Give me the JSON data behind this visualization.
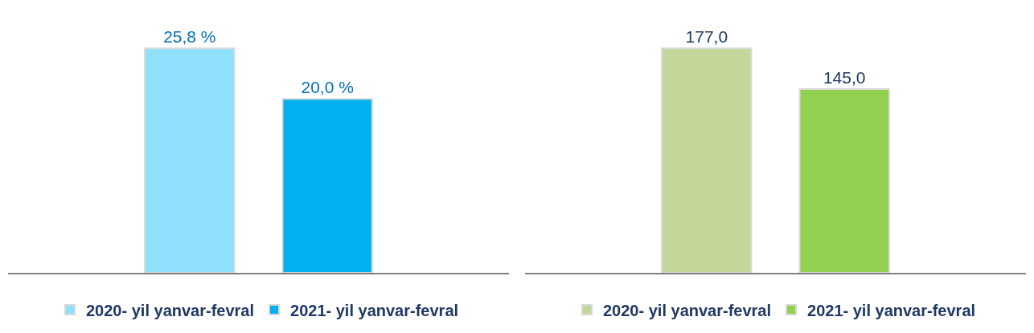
{
  "chart_data": [
    {
      "type": "bar",
      "categories": [
        null
      ],
      "data_labels": false,
      "legend": "bottom",
      "grid": false,
      "series": [
        {
          "name": "2020- yil yanvar-fevral",
          "color": "#8ee0fc",
          "values": [
            25.8
          ],
          "value_labels": [
            "25,8 %"
          ]
        },
        {
          "name": "2021- yil yanvar-fevral",
          "color": "#00b0f0",
          "values": [
            20.0
          ],
          "value_labels": [
            "20,0 %"
          ]
        }
      ]
    },
    {
      "type": "bar",
      "categories": [
        null
      ],
      "data_labels": false,
      "legend": "bottom",
      "grid": false,
      "series": [
        {
          "name": "2020- yil yanvar-fevral",
          "color": "#c4d79b",
          "values": [
            177.0
          ],
          "value_labels": [
            "177,0"
          ]
        },
        {
          "name": "2021- yil yanvar-fevral",
          "color": "#92d050",
          "values": [
            145.0
          ],
          "value_labels": [
            "145,0"
          ]
        }
      ]
    }
  ]
}
